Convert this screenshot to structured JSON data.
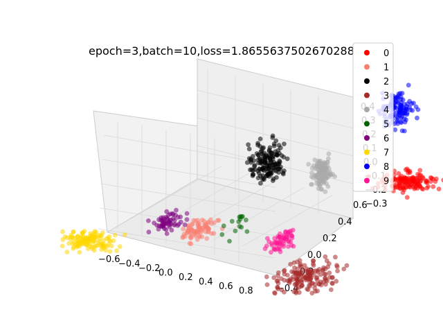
{
  "chart_data": {
    "type": "scatter",
    "projection": "3d",
    "title": "epoch=3,batch=10,loss=1.8655637502670288",
    "xlabel": "",
    "ylabel": "",
    "zlabel": "",
    "grid": true,
    "legend_placement": "top-right",
    "x_ticks": [
      "−0.6",
      "−0.4",
      "−0.2",
      "0.0",
      "0.2",
      "0.4",
      "0.6",
      "0.8"
    ],
    "y_ticks": [
      "−0.4",
      "−0.2",
      "0.0",
      "0.2",
      "0.4",
      "0.6"
    ],
    "z_ticks": [
      "−0.3",
      "−0.2",
      "−0.1",
      "0.0",
      "0.1",
      "0.2",
      "0.3",
      "0.4"
    ],
    "series": [
      {
        "name": "0",
        "color": "#ff0000",
        "count": 140,
        "center": [
          0.55,
          0.38,
          0.02
        ],
        "spread": [
          0.1,
          0.05,
          0.04
        ]
      },
      {
        "name": "1",
        "color": "#fa8072",
        "count": 80,
        "center": [
          -0.05,
          -0.1,
          -0.05
        ],
        "spread": [
          0.06,
          0.06,
          0.04
        ]
      },
      {
        "name": "2",
        "color": "#000000",
        "count": 150,
        "center": [
          -0.05,
          0.28,
          0.12
        ],
        "spread": [
          0.06,
          0.05,
          0.1
        ]
      },
      {
        "name": "3",
        "color": "#a52a2a",
        "count": 160,
        "center": [
          0.5,
          -0.15,
          -0.22
        ],
        "spread": [
          0.1,
          0.1,
          0.05
        ]
      },
      {
        "name": "4",
        "color": "#a9a9a9",
        "count": 120,
        "center": [
          0.2,
          0.3,
          0.08
        ],
        "spread": [
          0.03,
          0.03,
          0.07
        ]
      },
      {
        "name": "5",
        "color": "#006400",
        "count": 15,
        "center": [
          0.05,
          0.0,
          -0.05
        ],
        "spread": [
          0.05,
          0.05,
          0.05
        ]
      },
      {
        "name": "6",
        "color": "#800080",
        "count": 60,
        "center": [
          -0.25,
          -0.05,
          -0.05
        ],
        "spread": [
          0.05,
          0.05,
          0.04
        ]
      },
      {
        "name": "7",
        "color": "#ffd700",
        "count": 130,
        "center": [
          -0.5,
          -0.2,
          -0.1
        ],
        "spread": [
          0.1,
          0.04,
          0.04
        ]
      },
      {
        "name": "8",
        "color": "#0000ff",
        "count": 130,
        "center": [
          0.35,
          0.55,
          0.33
        ],
        "spread": [
          0.05,
          0.05,
          0.08
        ]
      },
      {
        "name": "9",
        "color": "#ff1493",
        "count": 60,
        "center": [
          0.3,
          -0.05,
          -0.1
        ],
        "spread": [
          0.04,
          0.05,
          0.04
        ]
      }
    ]
  }
}
